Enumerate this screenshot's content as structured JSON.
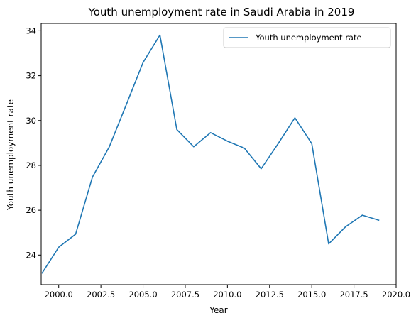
{
  "chart_data": {
    "type": "line",
    "title": "Youth unemployment rate in Saudi Arabia in 2019",
    "xlabel": "Year",
    "ylabel": "Youth unemployment rate",
    "xlim": [
      1998.96,
      2020.0
    ],
    "ylim": [
      22.68,
      34.33
    ],
    "x_ticks": [
      2000.0,
      2002.5,
      2005.0,
      2007.5,
      2010.0,
      2012.5,
      2015.0,
      2017.5,
      2020.0
    ],
    "x_tick_labels": [
      "2000.0",
      "2002.5",
      "2005.0",
      "2007.5",
      "2010.0",
      "2012.5",
      "2015.0",
      "2017.5",
      "2020.0"
    ],
    "y_ticks": [
      24,
      26,
      28,
      30,
      32,
      34
    ],
    "y_tick_labels": [
      "24",
      "26",
      "28",
      "30",
      "32",
      "34"
    ],
    "grid": false,
    "legend_position": "top-right",
    "series": [
      {
        "name": "Youth unemployment rate",
        "color": "#1f77b4",
        "x": [
          1999,
          2000,
          2001,
          2002,
          2003,
          2004,
          2005,
          2006,
          2007,
          2008,
          2009,
          2010,
          2011,
          2012,
          2013,
          2014,
          2015,
          2016,
          2017,
          2018,
          2019
        ],
        "y": [
          23.18,
          24.35,
          24.93,
          27.48,
          28.83,
          30.7,
          32.59,
          33.81,
          29.6,
          28.83,
          29.46,
          29.08,
          28.77,
          27.85,
          28.96,
          30.12,
          28.97,
          24.5,
          25.26,
          25.78,
          25.55
        ]
      }
    ]
  }
}
